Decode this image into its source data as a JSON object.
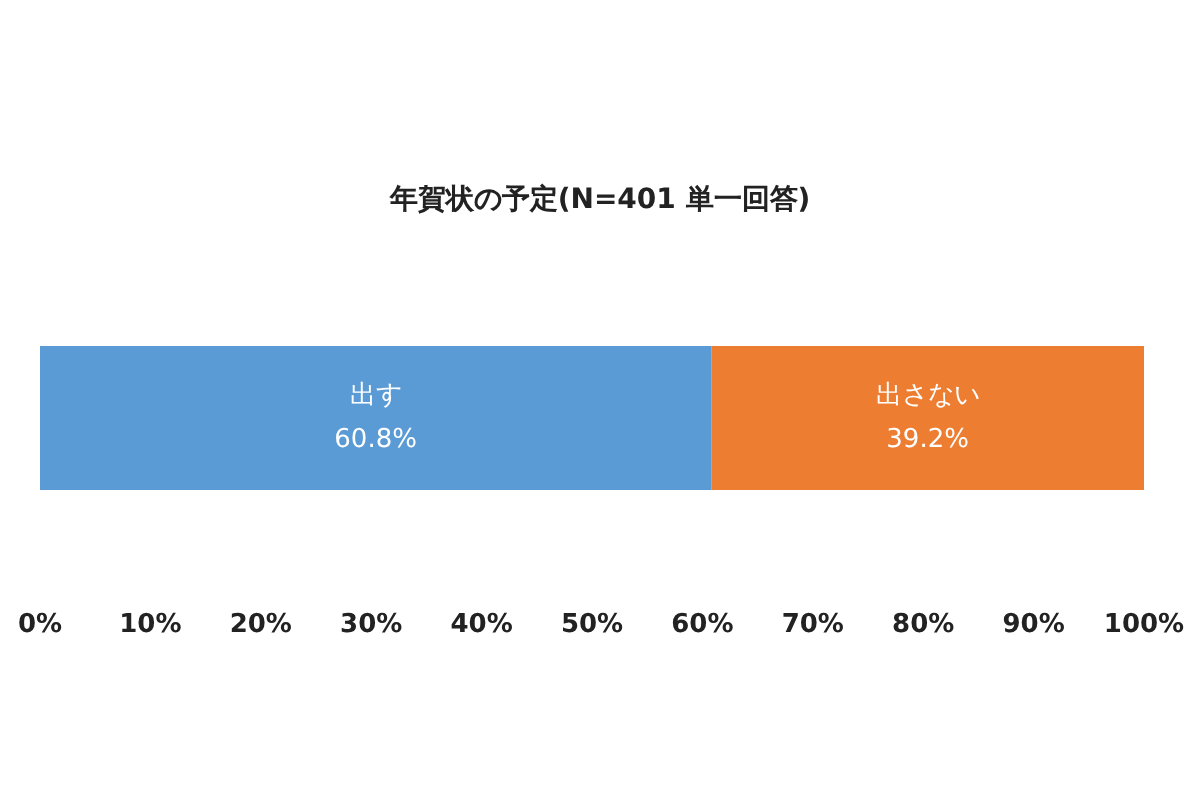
{
  "chart_data": {
    "type": "bar",
    "orientation": "horizontal",
    "stacked": true,
    "title": "年賀状の予定(N=401 単一回答)",
    "categories": [
      null
    ],
    "series": [
      {
        "name": "出す",
        "color": "#5b9bd5",
        "values": [
          60.8
        ],
        "value_labels": [
          "60.8%"
        ]
      },
      {
        "name": "出さない",
        "color": "#ed7d31",
        "values": [
          39.2
        ],
        "value_labels": [
          "39.2%"
        ]
      }
    ],
    "xlim": [
      0,
      100
    ],
    "xticks": [
      {
        "value": 0,
        "label": "0%"
      },
      {
        "value": 10,
        "label": "10%"
      },
      {
        "value": 20,
        "label": "20%"
      },
      {
        "value": 30,
        "label": "30%"
      },
      {
        "value": 40,
        "label": "40%"
      },
      {
        "value": 50,
        "label": "50%"
      },
      {
        "value": 60,
        "label": "60%"
      },
      {
        "value": 70,
        "label": "70%"
      },
      {
        "value": 80,
        "label": "80%"
      },
      {
        "value": 90,
        "label": "90%"
      },
      {
        "value": 100,
        "label": "100%"
      }
    ],
    "tick_labels": "x",
    "grid": false,
    "legend": false
  }
}
